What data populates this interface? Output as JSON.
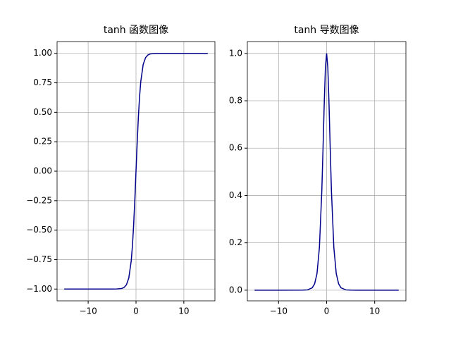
{
  "chart_data": [
    {
      "type": "line",
      "title": "tanh 函数图像",
      "grid": true,
      "x": [
        -15,
        -10,
        -5,
        -4,
        -3,
        -2.5,
        -2,
        -1.5,
        -1,
        -0.75,
        -0.5,
        -0.25,
        0,
        0.25,
        0.5,
        0.75,
        1,
        1.5,
        2,
        2.5,
        3,
        4,
        5,
        10,
        15
      ],
      "series": [
        {
          "color": "#00008b",
          "values": [
            -1,
            -1,
            -0.9999,
            -0.9993,
            -0.9951,
            -0.9866,
            -0.964,
            -0.9051,
            -0.7616,
            -0.6351,
            -0.4621,
            -0.2449,
            0,
            0.2449,
            0.4621,
            0.6351,
            0.7616,
            0.9051,
            0.964,
            0.9866,
            0.9951,
            0.9993,
            0.9999,
            1,
            1
          ]
        }
      ],
      "xlim": [
        -16.5,
        16.5
      ],
      "xticks": [
        {
          "value": -10,
          "label": "−10"
        },
        0,
        10
      ],
      "ylim": [
        -1.1,
        1.1
      ],
      "yticks": [
        {
          "value": -1,
          "label": "−1.00"
        },
        {
          "value": -0.75,
          "label": "−0.75"
        },
        {
          "value": -0.5,
          "label": "−0.50"
        },
        {
          "value": -0.25,
          "label": "−0.25"
        },
        {
          "value": 0,
          "label": "0.00"
        },
        {
          "value": 0.25,
          "label": "0.25"
        },
        {
          "value": 0.5,
          "label": "0.50"
        },
        {
          "value": 0.75,
          "label": "0.75"
        },
        {
          "value": 1,
          "label": "1.00"
        }
      ]
    },
    {
      "type": "line",
      "title": "tanh 导数图像",
      "grid": true,
      "x": [
        -15,
        -10,
        -5,
        -4,
        -3,
        -2.5,
        -2,
        -1.5,
        -1,
        -0.75,
        -0.5,
        -0.25,
        0,
        0.25,
        0.5,
        0.75,
        1,
        1.5,
        2,
        2.5,
        3,
        4,
        5,
        10,
        15
      ],
      "series": [
        {
          "color": "#00008b",
          "values": [
            0,
            0,
            0.0002,
            0.0013,
            0.0099,
            0.0266,
            0.0707,
            0.1807,
            0.42,
            0.5966,
            0.7864,
            0.94,
            1,
            0.94,
            0.7864,
            0.5966,
            0.42,
            0.1807,
            0.0707,
            0.0266,
            0.0099,
            0.0013,
            0.0002,
            0,
            0
          ]
        }
      ],
      "xlim": [
        -16.5,
        16.5
      ],
      "xticks": [
        {
          "value": -10,
          "label": "−10"
        },
        0,
        10
      ],
      "ylim": [
        -0.045,
        1.05
      ],
      "yticks": [
        {
          "value": 0,
          "label": "0.0"
        },
        {
          "value": 0.2,
          "label": "0.2"
        },
        {
          "value": 0.4,
          "label": "0.4"
        },
        {
          "value": 0.6,
          "label": "0.6"
        },
        {
          "value": 0.8,
          "label": "0.8"
        },
        {
          "value": 1,
          "label": "1.0"
        }
      ]
    }
  ]
}
